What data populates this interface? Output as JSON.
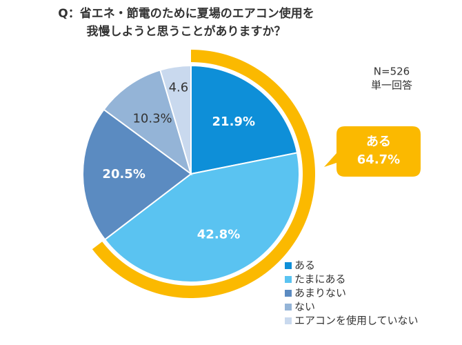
{
  "chart_data": {
    "type": "pie",
    "title": [
      "Q：省エネ・節電のために夏場のエアコン使用を",
      "我慢しようと思うことがありますか？"
    ],
    "annotations": [
      "N=526",
      "単一回答"
    ],
    "callout": [
      "ある",
      "64.7%"
    ],
    "categories": [
      "ある",
      "たまにある",
      "あまりない",
      "ない",
      "エアコンを使用していない"
    ],
    "values": [
      21.9,
      42.8,
      20.5,
      10.3,
      4.6
    ],
    "value_labels": [
      "21.9%",
      "42.8%",
      "20.5%",
      "10.3%",
      "4.6"
    ],
    "colors": [
      "#0e8fd8",
      "#5ac3f1",
      "#5b8bc1",
      "#94b4d7",
      "#c9d9ee"
    ],
    "label_colors": [
      "#ffffff",
      "#ffffff",
      "#ffffff",
      "#333333",
      "#333333"
    ],
    "highlight_color": "#fbb900"
  }
}
